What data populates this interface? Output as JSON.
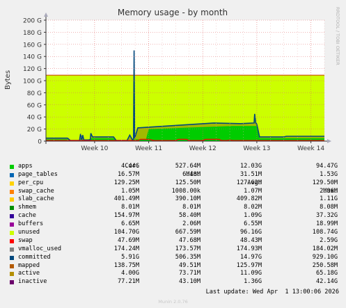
{
  "chart_data": {
    "type": "area",
    "title": "Memory usage - by month",
    "ylabel": "Bytes",
    "xlabel": "",
    "yticks": [
      "0",
      "20 G",
      "40 G",
      "60 G",
      "80 G",
      "100 G",
      "120 G",
      "140 G",
      "160 G",
      "180 G",
      "200 G"
    ],
    "ylim": [
      0,
      200
    ],
    "xticks": [
      "Week 10",
      "Week 11",
      "Week 12",
      "Week 13",
      "Week 14"
    ],
    "xtick_positions": [
      10,
      11,
      12,
      13,
      14
    ],
    "xlim": [
      9.1,
      14.25
    ],
    "grid": true,
    "unused_top": 109,
    "series": [
      {
        "name": "apps",
        "color": "#00cc00",
        "cur": "4.44G",
        "min": "527.64M",
        "avg": "12.03G",
        "max": "94.47G"
      },
      {
        "name": "page_tables",
        "color": "#0066b3",
        "cur": "16.57M",
        "min": "6.48M",
        "avg": "31.51M",
        "max": "1.53G"
      },
      {
        "name": "per_cpu",
        "color": "#ffd200",
        "cur": "129.25M",
        "min": "125.50M",
        "avg": "127.62M",
        "max": "129.50M"
      },
      {
        "name": "swap_cache",
        "color": "#ff8000",
        "cur": "1.05M",
        "min": "1008.00k",
        "avg": "1.07M",
        "max": "2.96M"
      },
      {
        "name": "slab_cache",
        "color": "#ffcc00",
        "cur": "401.49M",
        "min": "390.10M",
        "avg": "409.82M",
        "max": "1.11G"
      },
      {
        "name": "shmem",
        "color": "#008f00",
        "cur": "8.01M",
        "min": "8.01M",
        "avg": "8.02M",
        "max": "8.08M"
      },
      {
        "name": "cache",
        "color": "#330099",
        "cur": "154.97M",
        "min": "58.40M",
        "avg": "1.09G",
        "max": "37.32G"
      },
      {
        "name": "buffers",
        "color": "#990099",
        "cur": "6.65M",
        "min": "2.06M",
        "avg": "6.55M",
        "max": "18.99M"
      },
      {
        "name": "unused",
        "color": "#ccff00",
        "cur": "104.70G",
        "min": "667.59M",
        "avg": "96.16G",
        "max": "108.74G"
      },
      {
        "name": "swap",
        "color": "#ff0000",
        "cur": "47.69M",
        "min": "47.68M",
        "avg": "48.43M",
        "max": "2.59G"
      },
      {
        "name": "vmalloc_used",
        "color": "#808080",
        "cur": "174.24M",
        "min": "173.57M",
        "avg": "174.93M",
        "max": "184.02M"
      },
      {
        "name": "committed",
        "color": "#00487d",
        "cur": "5.91G",
        "min": "506.35M",
        "avg": "14.97G",
        "max": "929.10G"
      },
      {
        "name": "mapped",
        "color": "#b35a00",
        "cur": "138.75M",
        "min": "49.51M",
        "avg": "125.97M",
        "max": "250.58M"
      },
      {
        "name": "active",
        "color": "#b38f00",
        "cur": "4.00G",
        "min": "73.71M",
        "avg": "11.09G",
        "max": "65.18G"
      },
      {
        "name": "inactive",
        "color": "#6b006b",
        "cur": "77.21M",
        "min": "43.10M",
        "avg": "1.36G",
        "max": "42.14G"
      }
    ],
    "apps_profile": [
      [
        9.1,
        3
      ],
      [
        9.5,
        3
      ],
      [
        9.55,
        0
      ],
      [
        9.72,
        0
      ],
      [
        9.75,
        5
      ],
      [
        9.8,
        0
      ],
      [
        9.95,
        5
      ],
      [
        10.35,
        5
      ],
      [
        10.4,
        0
      ],
      [
        10.65,
        0
      ],
      [
        10.7,
        3
      ],
      [
        10.95,
        3
      ],
      [
        11.0,
        20
      ],
      [
        12.55,
        25
      ],
      [
        13.0,
        25
      ],
      [
        13.05,
        5
      ],
      [
        14.25,
        5
      ]
    ],
    "committed_profile": [
      [
        9.1,
        5
      ],
      [
        9.5,
        5
      ],
      [
        9.55,
        1
      ],
      [
        9.72,
        1
      ],
      [
        9.74,
        12
      ],
      [
        9.76,
        2
      ],
      [
        9.78,
        10
      ],
      [
        9.8,
        2
      ],
      [
        9.92,
        2
      ],
      [
        9.93,
        13
      ],
      [
        9.96,
        7
      ],
      [
        10.35,
        7
      ],
      [
        10.4,
        1
      ],
      [
        10.6,
        1
      ],
      [
        10.65,
        10
      ],
      [
        10.7,
        2
      ],
      [
        10.72,
        4
      ],
      [
        10.73,
        150
      ],
      [
        10.74,
        5
      ],
      [
        10.8,
        22
      ],
      [
        11.5,
        26
      ],
      [
        12.2,
        30
      ],
      [
        12.7,
        29
      ],
      [
        12.95,
        30
      ],
      [
        12.96,
        45
      ],
      [
        12.98,
        30
      ],
      [
        13.0,
        28
      ],
      [
        13.05,
        7
      ],
      [
        13.5,
        7
      ],
      [
        13.55,
        8
      ],
      [
        14.25,
        8
      ]
    ],
    "swap_profile": [
      [
        9.1,
        1
      ],
      [
        10.8,
        1
      ],
      [
        10.85,
        3
      ],
      [
        11.0,
        3
      ],
      [
        11.1,
        1
      ],
      [
        11.5,
        1
      ],
      [
        11.55,
        3
      ],
      [
        11.7,
        3
      ],
      [
        11.75,
        1
      ],
      [
        12.0,
        1
      ],
      [
        12.05,
        3
      ],
      [
        12.3,
        3
      ],
      [
        12.35,
        1
      ],
      [
        12.45,
        1
      ],
      [
        12.5,
        2
      ],
      [
        12.55,
        1
      ],
      [
        13.0,
        1
      ],
      [
        13.05,
        1
      ],
      [
        14.25,
        1
      ]
    ]
  },
  "legend_header": {
    "cur": "Cur:",
    "min": "Min:",
    "avg": "Avg:",
    "max": "Max:"
  },
  "last_update": "Last update: Wed Apr  1 13:00:06 2026",
  "footer": "Munin 2.0.76",
  "watermark": "RRDTOOL / TOBI OETIKER"
}
